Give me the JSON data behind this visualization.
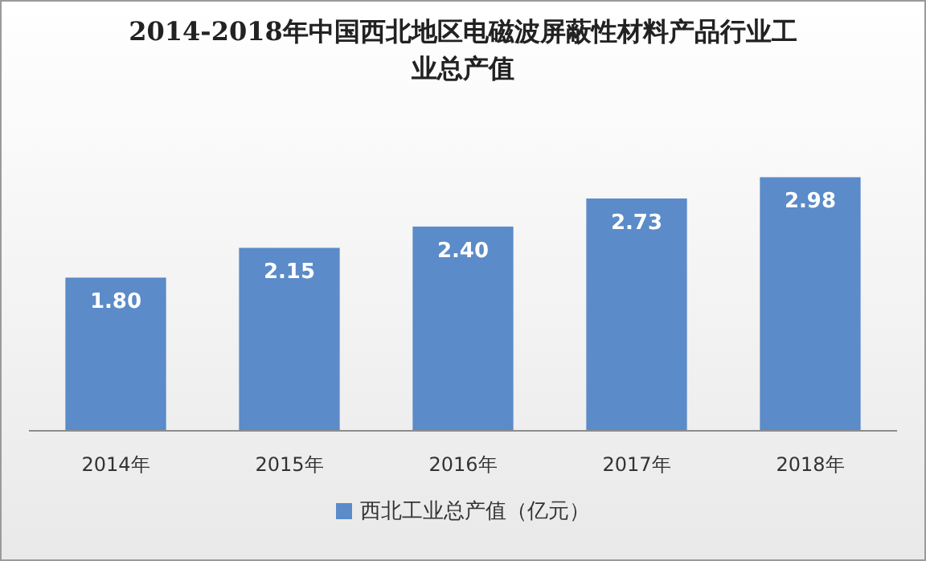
{
  "chart_data": {
    "type": "bar",
    "title": "2014-2018年中国西北地区电磁波屏蔽性材料产品行业工业总产值",
    "categories": [
      "2014年",
      "2015年",
      "2016年",
      "2017年",
      "2018年"
    ],
    "series": [
      {
        "name": "西北工业总产值（亿元）",
        "color": "#5b8bc8",
        "values": [
          1.8,
          2.15,
          2.4,
          2.73,
          2.98
        ],
        "value_labels": [
          "1.80",
          "2.15",
          "2.40",
          "2.73",
          "2.98"
        ]
      }
    ],
    "legend": "bottom"
  }
}
